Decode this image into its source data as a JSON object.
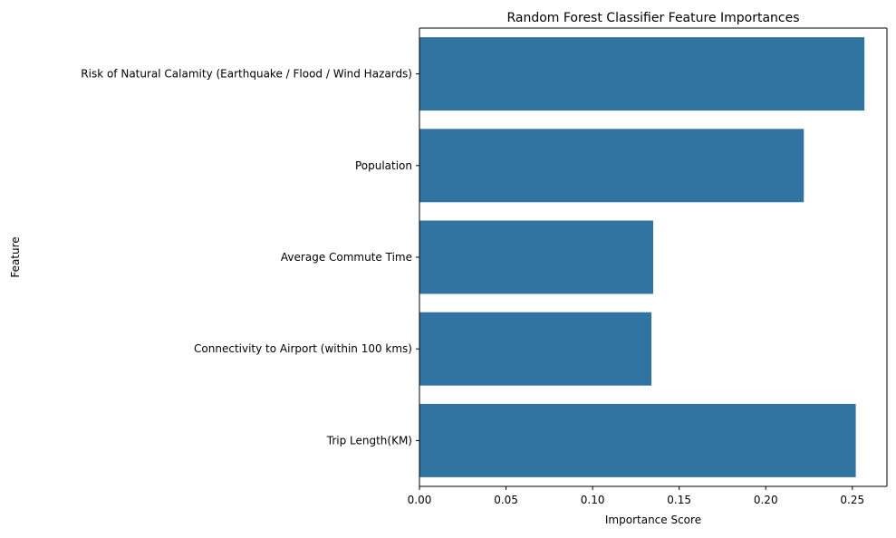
{
  "chart_data": {
    "type": "bar",
    "orientation": "horizontal",
    "title": "Random Forest Classifier Feature Importances",
    "xlabel": "Importance Score",
    "ylabel": "Feature",
    "categories": [
      "Risk of Natural Calamity (Earthquake / Flood / Wind Hazards)",
      "Population",
      "Average Commute Time",
      "Connectivity to Airport (within 100 kms)",
      "Trip Length(KM)"
    ],
    "values": [
      0.257,
      0.222,
      0.135,
      0.134,
      0.252
    ],
    "xlim": [
      0,
      0.27
    ],
    "xticks": [
      0.0,
      0.05,
      0.1,
      0.15,
      0.2,
      0.25
    ],
    "xtick_labels": [
      "0.00",
      "0.05",
      "0.10",
      "0.15",
      "0.20",
      "0.25"
    ],
    "bar_color": "#3274a1",
    "grid": false
  }
}
